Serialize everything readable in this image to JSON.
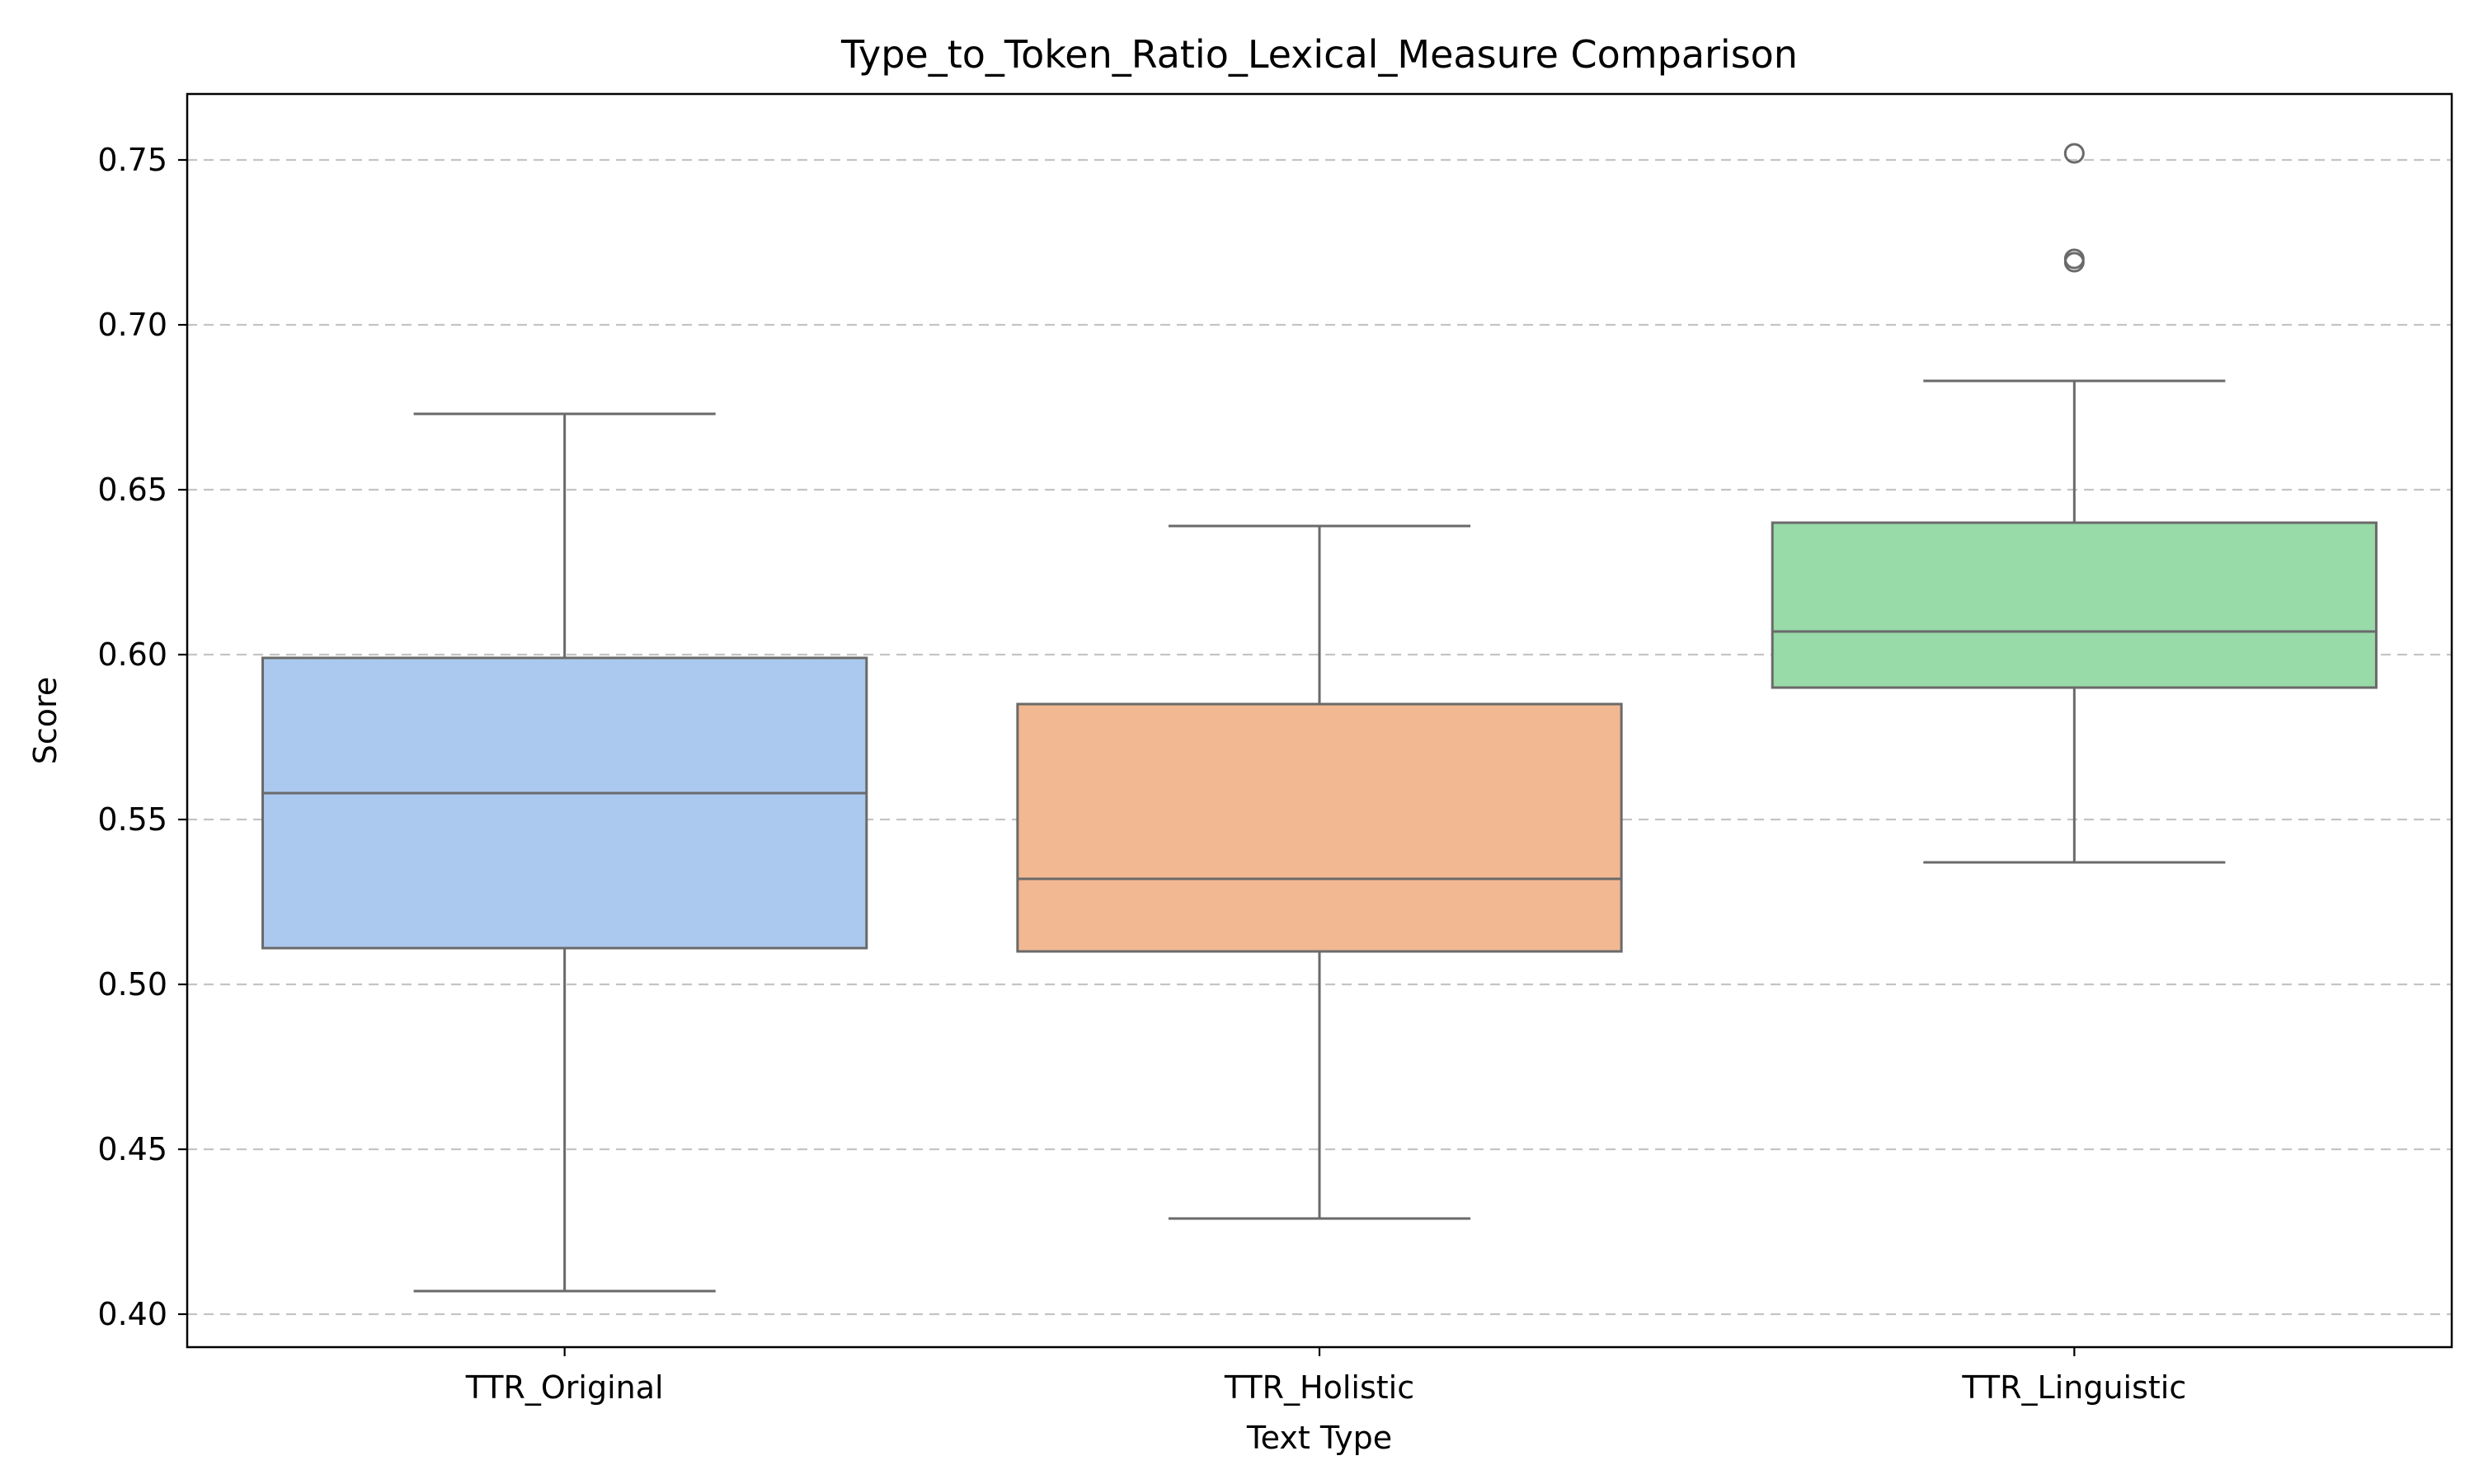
{
  "chart_data": {
    "type": "box",
    "title": "Type_to_Token_Ratio_Lexical_Measure Comparison",
    "xlabel": "Text Type",
    "ylabel": "Score",
    "categories": [
      "TTR_Original",
      "TTR_Holistic",
      "TTR_Linguistic"
    ],
    "colors": [
      "#abc9ee",
      "#f1b892",
      "#98daa8"
    ],
    "series": [
      {
        "category": "TTR_Original",
        "whisker_low": 0.407,
        "q1": 0.511,
        "median": 0.558,
        "q3": 0.599,
        "whisker_high": 0.673,
        "outliers": []
      },
      {
        "category": "TTR_Holistic",
        "whisker_low": 0.429,
        "q1": 0.51,
        "median": 0.532,
        "q3": 0.585,
        "whisker_high": 0.639,
        "outliers": []
      },
      {
        "category": "TTR_Linguistic",
        "whisker_low": 0.537,
        "q1": 0.59,
        "median": 0.607,
        "q3": 0.64,
        "whisker_high": 0.683,
        "outliers": [
          0.752,
          0.72,
          0.719
        ]
      }
    ],
    "ylim": [
      0.39,
      0.77
    ],
    "yticks": [
      0.4,
      0.45,
      0.5,
      0.55,
      0.6,
      0.65,
      0.7,
      0.75
    ],
    "ytick_labels": [
      "0.40",
      "0.45",
      "0.50",
      "0.55",
      "0.60",
      "0.65",
      "0.70",
      "0.75"
    ],
    "grid": {
      "y": true,
      "x": false,
      "style": "dashed",
      "color": "#c4c4c4"
    },
    "legend": false,
    "line_color": "#6a6a6a"
  }
}
